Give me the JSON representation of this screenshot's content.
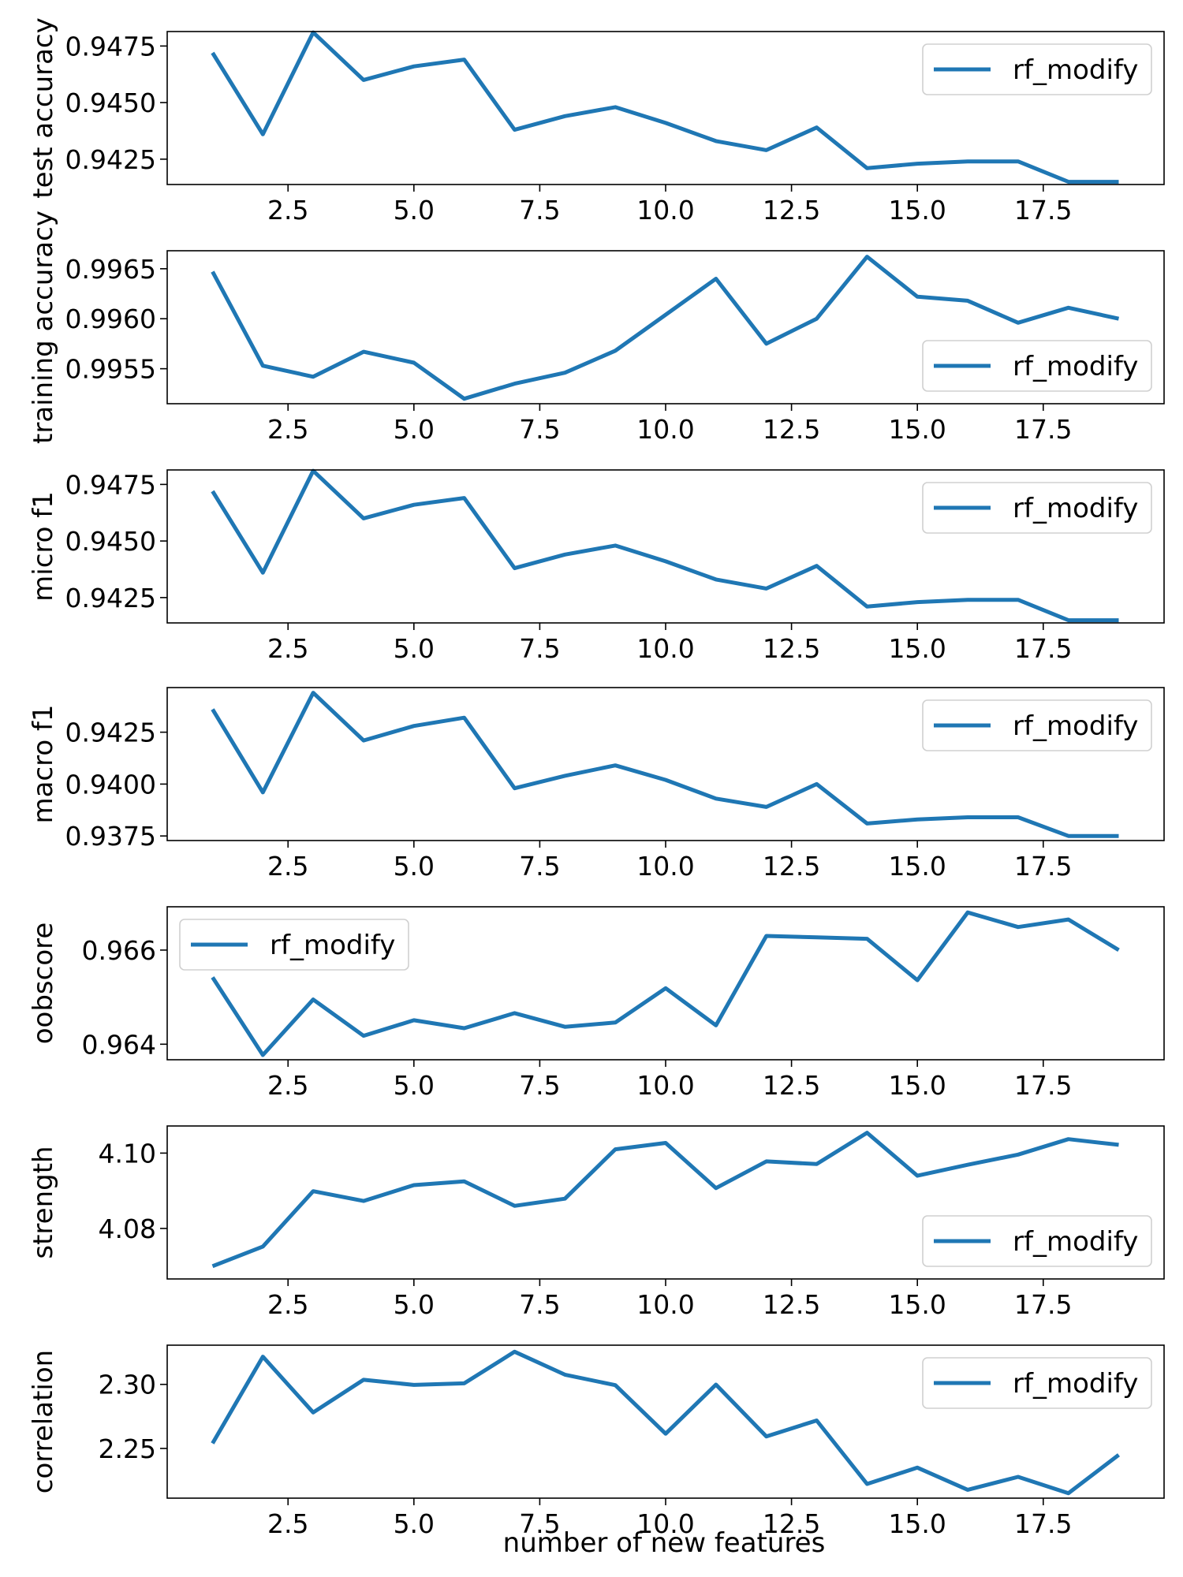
{
  "chart_data": [
    {
      "type": "line",
      "ylabel": "test accuracy",
      "xlabel": "",
      "x": [
        1,
        2,
        3,
        4,
        5,
        6,
        7,
        8,
        9,
        10,
        11,
        12,
        13,
        14,
        15,
        16,
        17,
        18,
        19
      ],
      "series": [
        {
          "name": "rf_modify",
          "values": [
            0.9472,
            0.9436,
            0.9481,
            0.946,
            0.9466,
            0.9469,
            0.9438,
            0.9444,
            0.9448,
            0.9441,
            0.9433,
            0.9429,
            0.9439,
            0.9421,
            0.9423,
            0.9424,
            0.9424,
            0.9415,
            0.9415
          ]
        }
      ],
      "xlim": [
        0.1,
        19.9
      ],
      "ylim": [
        0.94138,
        0.94814
      ],
      "xticks": [
        "2.5",
        "5.0",
        "7.5",
        "10.0",
        "12.5",
        "15.0",
        "17.5"
      ],
      "yticks": [
        "0.9425",
        "0.9450",
        "0.9475"
      ],
      "legend": "top-right",
      "grid": false
    },
    {
      "type": "line",
      "ylabel": "training accuracy",
      "xlabel": "",
      "x": [
        1,
        2,
        3,
        4,
        5,
        6,
        7,
        8,
        9,
        10,
        11,
        12,
        13,
        14,
        15,
        16,
        17,
        18,
        19
      ],
      "series": [
        {
          "name": "rf_modify",
          "values": [
            0.99647,
            0.99553,
            0.99542,
            0.99567,
            0.99556,
            0.9952,
            0.99535,
            0.99546,
            0.99568,
            0.99604,
            0.9964,
            0.99575,
            0.996,
            0.99662,
            0.99622,
            0.99618,
            0.99596,
            0.99611,
            0.996
          ]
        }
      ],
      "xlim": [
        0.1,
        19.9
      ],
      "ylim": [
        0.99515,
        0.99668
      ],
      "xticks": [
        "2.5",
        "5.0",
        "7.5",
        "10.0",
        "12.5",
        "15.0",
        "17.5"
      ],
      "yticks": [
        "0.9955",
        "0.9960",
        "0.9965"
      ],
      "legend": "bottom-right",
      "grid": false
    },
    {
      "type": "line",
      "ylabel": "micro f1",
      "xlabel": "",
      "x": [
        1,
        2,
        3,
        4,
        5,
        6,
        7,
        8,
        9,
        10,
        11,
        12,
        13,
        14,
        15,
        16,
        17,
        18,
        19
      ],
      "series": [
        {
          "name": "rf_modify",
          "values": [
            0.9472,
            0.9436,
            0.9481,
            0.946,
            0.9466,
            0.9469,
            0.9438,
            0.9444,
            0.9448,
            0.9441,
            0.9433,
            0.9429,
            0.9439,
            0.9421,
            0.9423,
            0.9424,
            0.9424,
            0.9415,
            0.9415
          ]
        }
      ],
      "xlim": [
        0.1,
        19.9
      ],
      "ylim": [
        0.94138,
        0.94814
      ],
      "xticks": [
        "2.5",
        "5.0",
        "7.5",
        "10.0",
        "12.5",
        "15.0",
        "17.5"
      ],
      "yticks": [
        "0.9425",
        "0.9450",
        "0.9475"
      ],
      "legend": "top-right",
      "grid": false
    },
    {
      "type": "line",
      "ylabel": "macro f1",
      "xlabel": "",
      "x": [
        1,
        2,
        3,
        4,
        5,
        6,
        7,
        8,
        9,
        10,
        11,
        12,
        13,
        14,
        15,
        16,
        17,
        18,
        19
      ],
      "series": [
        {
          "name": "rf_modify",
          "values": [
            0.9436,
            0.9396,
            0.9444,
            0.9421,
            0.9428,
            0.9432,
            0.9398,
            0.9404,
            0.9409,
            0.9402,
            0.9393,
            0.9389,
            0.94,
            0.9381,
            0.9383,
            0.9384,
            0.9384,
            0.9375,
            0.9375
          ]
        }
      ],
      "xlim": [
        0.1,
        19.9
      ],
      "ylim": [
        0.93728,
        0.94465
      ],
      "xticks": [
        "2.5",
        "5.0",
        "7.5",
        "10.0",
        "12.5",
        "15.0",
        "17.5"
      ],
      "yticks": [
        "0.9375",
        "0.9400",
        "0.9425"
      ],
      "legend": "top-right",
      "grid": false
    },
    {
      "type": "line",
      "ylabel": "oobscore",
      "xlabel": "",
      "x": [
        1,
        2,
        3,
        4,
        5,
        6,
        7,
        8,
        9,
        10,
        11,
        12,
        13,
        14,
        15,
        16,
        17,
        18,
        19
      ],
      "series": [
        {
          "name": "rf_modify",
          "values": [
            0.96542,
            0.96377,
            0.96495,
            0.96418,
            0.96451,
            0.96434,
            0.96466,
            0.96437,
            0.96446,
            0.96519,
            0.9644,
            0.9663,
            0.96627,
            0.96624,
            0.96536,
            0.9668,
            0.96649,
            0.96665,
            0.966
          ]
        }
      ],
      "xlim": [
        0.1,
        19.9
      ],
      "ylim": [
        0.96367,
        0.96692
      ],
      "xticks": [
        "2.5",
        "5.0",
        "7.5",
        "10.0",
        "12.5",
        "15.0",
        "17.5"
      ],
      "yticks": [
        "0.964",
        "0.966"
      ],
      "legend": "top-left",
      "grid": false
    },
    {
      "type": "line",
      "ylabel": "strength",
      "xlabel": "",
      "x": [
        1,
        2,
        3,
        4,
        5,
        6,
        7,
        8,
        9,
        10,
        11,
        12,
        13,
        14,
        15,
        16,
        17,
        18,
        19
      ],
      "series": [
        {
          "name": "rf_modify",
          "values": [
            4.07,
            4.0752,
            4.0899,
            4.0873,
            4.0915,
            4.0925,
            4.086,
            4.0879,
            4.101,
            4.1027,
            4.0907,
            4.0978,
            4.0971,
            4.1054,
            4.094,
            4.0969,
            4.0996,
            4.1037,
            4.1022
          ]
        }
      ],
      "xlim": [
        0.1,
        19.9
      ],
      "ylim": [
        4.0666,
        4.1072
      ],
      "xticks": [
        "2.5",
        "5.0",
        "7.5",
        "10.0",
        "12.5",
        "15.0",
        "17.5"
      ],
      "yticks": [
        "4.08",
        "4.10"
      ],
      "legend": "bottom-right",
      "grid": false
    },
    {
      "type": "line",
      "ylabel": "correlation",
      "xlabel": "number of new features",
      "x": [
        1,
        2,
        3,
        4,
        5,
        6,
        7,
        8,
        9,
        10,
        11,
        12,
        13,
        14,
        15,
        16,
        17,
        18,
        19
      ],
      "series": [
        {
          "name": "rf_modify",
          "values": [
            2.254,
            2.3216,
            2.2781,
            2.3036,
            2.2996,
            2.3008,
            2.3255,
            2.3076,
            2.2994,
            2.2615,
            2.2998,
            2.2594,
            2.2718,
            2.2223,
            2.235,
            2.2177,
            2.2278,
            2.2151,
            2.245
          ]
        }
      ],
      "xlim": [
        0.1,
        19.9
      ],
      "ylim": [
        2.2112,
        2.3306
      ],
      "xticks": [
        "2.5",
        "5.0",
        "7.5",
        "10.0",
        "12.5",
        "15.0",
        "17.5"
      ],
      "yticks": [
        "2.25",
        "2.30"
      ],
      "legend": "top-right",
      "grid": false
    }
  ],
  "colors": {
    "series": "#1f77b4",
    "axes": "#000000",
    "legend_border": "#d0d0d0"
  }
}
